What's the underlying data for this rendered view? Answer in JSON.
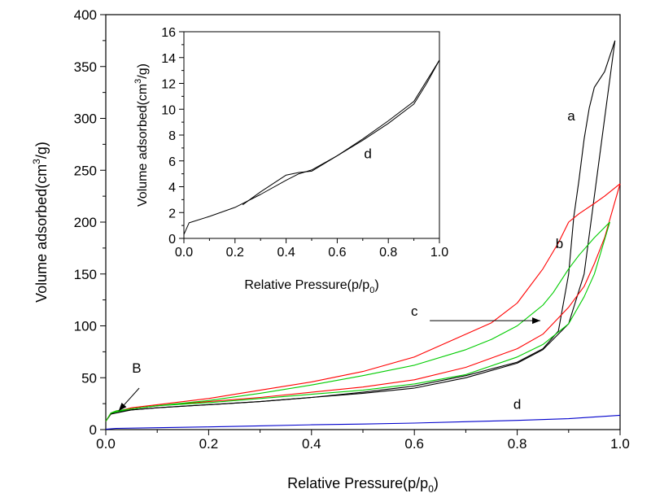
{
  "chart_data": [
    {
      "type": "line",
      "panel": "main",
      "xlabel": "Relative Pressure(p/p",
      "xlabel_sub": "0",
      "xlabel_end": ")",
      "ylabel": "Volume adsorbed(cm",
      "ylabel_sup": "3",
      "ylabel_end": "/g)",
      "xlim": [
        0.0,
        1.0
      ],
      "ylim": [
        0,
        400
      ],
      "xticks": [
        "0.0",
        "0.2",
        "0.4",
        "0.6",
        "0.8",
        "1.0"
      ],
      "yticks": [
        "0",
        "50",
        "100",
        "150",
        "200",
        "250",
        "300",
        "350",
        "400"
      ],
      "series": [
        {
          "name": "a",
          "color": "#000000",
          "adsorption": {
            "x": [
              0.0,
              0.01,
              0.02,
              0.05,
              0.1,
              0.2,
              0.3,
              0.4,
              0.5,
              0.6,
              0.7,
              0.8,
              0.85,
              0.9,
              0.93,
              0.95,
              0.97,
              0.99
            ],
            "y": [
              8,
              15,
              17,
              19,
              21,
              24,
              27,
              31,
              35,
              40,
              50,
              64,
              77,
              102,
              150,
              225,
              300,
              375
            ]
          },
          "desorption": {
            "x": [
              0.99,
              0.97,
              0.95,
              0.94,
              0.93,
              0.92,
              0.91,
              0.9,
              0.88,
              0.85,
              0.8,
              0.7,
              0.6,
              0.5,
              0.4,
              0.3,
              0.2,
              0.1,
              0.05,
              0.01
            ],
            "y": [
              375,
              345,
              330,
              310,
              280,
              240,
              205,
              150,
              95,
              78,
              65,
              52,
              42,
              36,
              31,
              27,
              24,
              21,
              19,
              15
            ]
          }
        },
        {
          "name": "b",
          "color": "#ff0000",
          "adsorption": {
            "x": [
              0.0,
              0.01,
              0.02,
              0.05,
              0.1,
              0.2,
              0.3,
              0.4,
              0.5,
              0.6,
              0.7,
              0.8,
              0.85,
              0.9,
              0.93,
              0.95,
              0.97,
              1.0
            ],
            "y": [
              8,
              16,
              18,
              20,
              23,
              27,
              31,
              36,
              41,
              48,
              60,
              78,
              92,
              118,
              138,
              160,
              185,
              237
            ]
          },
          "desorption": {
            "x": [
              1.0,
              0.97,
              0.95,
              0.92,
              0.9,
              0.88,
              0.85,
              0.8,
              0.75,
              0.7,
              0.6,
              0.5,
              0.4,
              0.3,
              0.2,
              0.1,
              0.05,
              0.01
            ],
            "y": [
              237,
              225,
              218,
              208,
              200,
              180,
              155,
              122,
              103,
              92,
              70,
              56,
              46,
              38,
              30,
              24,
              21,
              16
            ]
          }
        },
        {
          "name": "c",
          "color": "#00cc00",
          "adsorption": {
            "x": [
              0.0,
              0.01,
              0.02,
              0.05,
              0.1,
              0.2,
              0.3,
              0.4,
              0.5,
              0.6,
              0.7,
              0.8,
              0.85,
              0.9,
              0.93,
              0.95,
              0.98
            ],
            "y": [
              8,
              16,
              18,
              20,
              23,
              26,
              30,
              34,
              38,
              44,
              53,
              70,
              82,
              102,
              128,
              150,
              200
            ]
          },
          "desorption": {
            "x": [
              0.98,
              0.95,
              0.92,
              0.9,
              0.87,
              0.85,
              0.8,
              0.75,
              0.7,
              0.6,
              0.5,
              0.4,
              0.3,
              0.2,
              0.1,
              0.05,
              0.01
            ],
            "y": [
              200,
              185,
              168,
              155,
              132,
              120,
              100,
              87,
              77,
              62,
              52,
              43,
              35,
              28,
              23,
              20,
              16
            ]
          }
        },
        {
          "name": "d",
          "color": "#0000cc",
          "adsorption": {
            "x": [
              0.0,
              0.02,
              0.1,
              0.2,
              0.3,
              0.4,
              0.5,
              0.6,
              0.7,
              0.8,
              0.9,
              1.0
            ],
            "y": [
              0.3,
              1.2,
              1.8,
              2.6,
              3.6,
              4.6,
              5.3,
              6.3,
              7.6,
              8.9,
              10.5,
              13.8
            ]
          }
        }
      ],
      "annotations": [
        {
          "text": "a",
          "x": 0.905,
          "y": 298
        },
        {
          "text": "b",
          "x": 0.882,
          "y": 175
        },
        {
          "text": "c",
          "x": 0.6,
          "y": 110
        },
        {
          "text": "d",
          "x": 0.8,
          "y": 20
        },
        {
          "text": "B",
          "x": 0.06,
          "y": 55
        }
      ],
      "arrows": [
        {
          "label": "c",
          "from": [
            0.63,
            105
          ],
          "to": [
            0.845,
            105
          ]
        },
        {
          "label": "B",
          "from": [
            0.065,
            40
          ],
          "to": [
            0.025,
            18
          ]
        }
      ]
    },
    {
      "type": "line",
      "panel": "inset",
      "xlabel": "Relative Pressure(p/p",
      "xlabel_sub": "0",
      "xlabel_end": ")",
      "ylabel": "Volume adsorbed(cm",
      "ylabel_sup": "3",
      "ylabel_end": "/g)",
      "xlim": [
        0.0,
        1.0
      ],
      "ylim": [
        0,
        16
      ],
      "xticks": [
        "0.0",
        "0.2",
        "0.4",
        "0.6",
        "0.8",
        "1.0"
      ],
      "yticks": [
        "0",
        "2",
        "4",
        "6",
        "8",
        "10",
        "12",
        "14",
        "16"
      ],
      "series": [
        {
          "name": "d",
          "color": "#000000",
          "adsorption": {
            "x": [
              0.0,
              0.02,
              0.1,
              0.2,
              0.3,
              0.4,
              0.45,
              0.5,
              0.6,
              0.7,
              0.8,
              0.9,
              0.95,
              1.0
            ],
            "y": [
              0.3,
              1.2,
              1.7,
              2.4,
              3.4,
              4.5,
              5.0,
              5.3,
              6.4,
              7.6,
              8.9,
              10.4,
              12.0,
              13.8
            ]
          },
          "desorption": {
            "x": [
              1.0,
              0.95,
              0.9,
              0.8,
              0.7,
              0.6,
              0.5,
              0.45,
              0.4,
              0.3,
              0.23
            ],
            "y": [
              13.8,
              12.2,
              10.6,
              9.1,
              7.7,
              6.4,
              5.2,
              5.1,
              4.9,
              3.6,
              2.6
            ]
          }
        }
      ],
      "annotations": [
        {
          "text": "d",
          "x": 0.72,
          "y": 6.2
        }
      ]
    }
  ]
}
